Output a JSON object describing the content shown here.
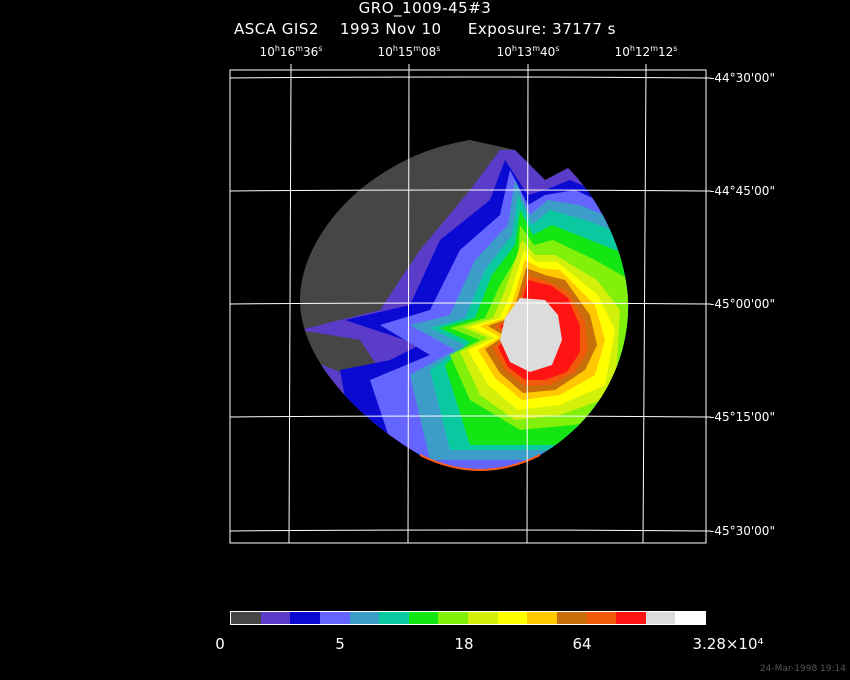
{
  "header": {
    "title": "GRO_1009-45#3",
    "instrument": "ASCA GIS2",
    "date": "1993 Nov 10",
    "exposure": "Exposure: 37177 s"
  },
  "ra_axis": {
    "labels": [
      "10h16m36s",
      "10h15m08s",
      "10h13m40s",
      "10h12m12s"
    ],
    "display": [
      {
        "h": "10",
        "m": "16",
        "s": "36"
      },
      {
        "h": "10",
        "m": "15",
        "s": "08"
      },
      {
        "h": "10",
        "m": "13",
        "s": "40"
      },
      {
        "h": "10",
        "m": "12",
        "s": "12"
      }
    ]
  },
  "dec_axis": {
    "labels": [
      "-44°30'00\"",
      "-44°45'00\"",
      "-45°00'00\"",
      "-45°15'00\"",
      "-45°30'00\""
    ]
  },
  "colorbar": {
    "colors": [
      "#464646",
      "#5a3cc8",
      "#0a0ad2",
      "#6464ff",
      "#3c9ec8",
      "#0ac8a0",
      "#14e614",
      "#82f00a",
      "#d2f00a",
      "#ffff00",
      "#ffc800",
      "#c86e0a",
      "#f05a0a",
      "#ff1414",
      "#dcdcdc",
      "#ffffff"
    ],
    "tick_labels": [
      "0",
      "5",
      "18",
      "64",
      "3.28×10⁴"
    ]
  },
  "footer": {
    "timestamp": "24-Mar-1998 19:14"
  }
}
